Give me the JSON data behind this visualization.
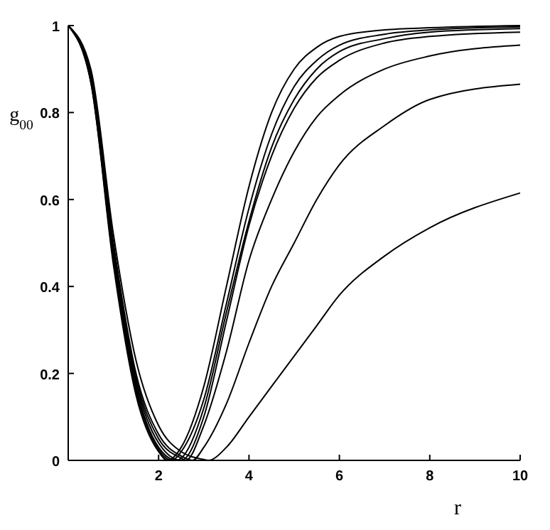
{
  "chart_data": {
    "type": "line",
    "xlabel": "r",
    "ylabel": "g$_{00}$",
    "xlim": [
      0,
      10
    ],
    "ylim": [
      0,
      1
    ],
    "xticks": [
      2,
      4,
      6,
      8,
      10
    ],
    "yticks": [
      0,
      0.2,
      0.4,
      0.6,
      0.8,
      1
    ],
    "grid": false,
    "marker": "none",
    "line_style": "solid",
    "series": [
      {
        "color": "#000000",
        "x": [
          0,
          0.5,
          1,
          1.5,
          2,
          2.2,
          2.5,
          3,
          3.5,
          4,
          4.5,
          5,
          5.5,
          6,
          7,
          8,
          10
        ],
        "values": [
          1,
          0.87,
          0.45,
          0.15,
          0.02,
          0,
          0.03,
          0.17,
          0.4,
          0.63,
          0.8,
          0.9,
          0.95,
          0.975,
          0.99,
          0.995,
          1
        ]
      },
      {
        "color": "#000000",
        "x": [
          0,
          0.5,
          1,
          1.5,
          2,
          2.3,
          2.5,
          3,
          3.5,
          4,
          4.5,
          5,
          5.5,
          6,
          7,
          8,
          10
        ],
        "values": [
          1,
          0.87,
          0.46,
          0.16,
          0.025,
          0,
          0.02,
          0.14,
          0.36,
          0.58,
          0.75,
          0.86,
          0.92,
          0.955,
          0.98,
          0.99,
          0.997
        ]
      },
      {
        "color": "#000000",
        "x": [
          0,
          0.5,
          1,
          1.5,
          2,
          2.4,
          2.5,
          3,
          3.5,
          4,
          4.5,
          5,
          5.5,
          6,
          7,
          8,
          10
        ],
        "values": [
          1,
          0.875,
          0.47,
          0.17,
          0.03,
          0,
          0.005,
          0.12,
          0.34,
          0.55,
          0.72,
          0.83,
          0.9,
          0.94,
          0.97,
          0.985,
          0.993
        ]
      },
      {
        "color": "#000000",
        "x": [
          0,
          0.5,
          1,
          1.5,
          2,
          2.5,
          3,
          3.5,
          4,
          4.5,
          5,
          5.5,
          6,
          7,
          8,
          10
        ],
        "values": [
          1,
          0.88,
          0.48,
          0.18,
          0.04,
          0,
          0.1,
          0.32,
          0.54,
          0.7,
          0.81,
          0.88,
          0.92,
          0.96,
          0.975,
          0.985
        ]
      },
      {
        "color": "#000000",
        "x": [
          0,
          0.5,
          1,
          1.5,
          2,
          2.5,
          2.6,
          3,
          3.5,
          4,
          4.5,
          5,
          5.5,
          6,
          7,
          8,
          10
        ],
        "values": [
          1,
          0.88,
          0.49,
          0.19,
          0.05,
          0.005,
          0,
          0.08,
          0.25,
          0.46,
          0.6,
          0.71,
          0.79,
          0.84,
          0.9,
          0.93,
          0.955
        ]
      },
      {
        "color": "#000000",
        "x": [
          0,
          0.5,
          1,
          1.5,
          2,
          2.5,
          2.75,
          3,
          3.5,
          4,
          4.5,
          5,
          5.5,
          6,
          7,
          8,
          10
        ],
        "values": [
          1,
          0.89,
          0.5,
          0.2,
          0.06,
          0.01,
          0,
          0.03,
          0.13,
          0.27,
          0.4,
          0.5,
          0.6,
          0.68,
          0.77,
          0.83,
          0.865
        ]
      },
      {
        "color": "#000000",
        "x": [
          0,
          0.5,
          1,
          1.5,
          2,
          2.5,
          3,
          3.1,
          3.5,
          4,
          4.5,
          5,
          5.5,
          6,
          7,
          8,
          10
        ],
        "values": [
          1,
          0.9,
          0.52,
          0.23,
          0.08,
          0.02,
          0.002,
          0,
          0.03,
          0.1,
          0.17,
          0.24,
          0.31,
          0.38,
          0.47,
          0.535,
          0.615
        ]
      }
    ]
  }
}
